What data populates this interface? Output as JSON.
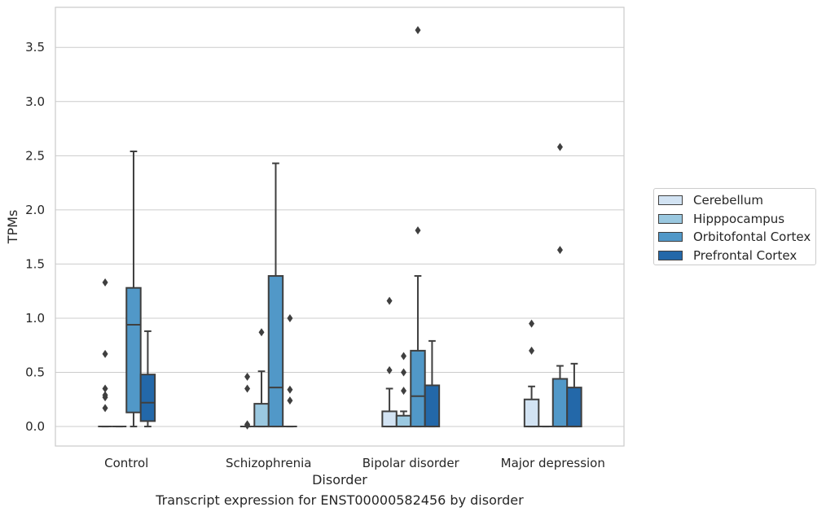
{
  "chart_data": {
    "type": "boxplot",
    "title": "",
    "caption": "Transcript expression for ENST00000582456 by disorder",
    "xlabel": "Disorder",
    "ylabel": "TPMs",
    "ylim": [
      -0.18,
      3.87
    ],
    "yticks": [
      "0.0",
      "0.5",
      "1.0",
      "1.5",
      "2.0",
      "2.5",
      "3.0",
      "3.5"
    ],
    "categories": [
      "Control",
      "Schizophrenia",
      "Bipolar disorder",
      "Major depression"
    ],
    "grid": "horizontal",
    "legend_position": "right",
    "series": [
      {
        "name": "Cerebellum",
        "color": "#d2e3f3",
        "boxes": [
          {
            "q1": 0,
            "median": 0,
            "q3": 0,
            "whislo": 0,
            "whishi": 0,
            "fliers": [
              0.17,
              0.27,
              0.29,
              0.35,
              0.67,
              1.33
            ]
          },
          {
            "q1": 0,
            "median": 0,
            "q3": 0,
            "whislo": 0,
            "whishi": 0,
            "fliers": [
              0.01,
              0.02,
              0.35,
              0.46
            ]
          },
          {
            "q1": 0,
            "median": 0,
            "q3": 0.14,
            "whislo": 0,
            "whishi": 0.35,
            "fliers": [
              0.52,
              1.16
            ]
          },
          {
            "q1": 0,
            "median": 0,
            "q3": 0.25,
            "whislo": 0,
            "whishi": 0.37,
            "fliers": [
              0.7,
              0.95
            ]
          }
        ]
      },
      {
        "name": "Hipppocampus",
        "color": "#9ac8e0",
        "boxes": [
          {
            "q1": 0,
            "median": 0,
            "q3": 0,
            "whislo": 0,
            "whishi": 0,
            "fliers": []
          },
          {
            "q1": 0,
            "median": 0,
            "q3": 0.21,
            "whislo": 0,
            "whishi": 0.51,
            "fliers": [
              0.87
            ]
          },
          {
            "q1": 0,
            "median": 0,
            "q3": 0.1,
            "whislo": 0,
            "whishi": 0.14,
            "fliers": [
              0.33,
              0.5,
              0.65
            ]
          },
          {
            "q1": 0,
            "median": 0,
            "q3": 0,
            "whislo": 0,
            "whishi": 0,
            "fliers": []
          }
        ]
      },
      {
        "name": "Orbitofontal Cortex",
        "color": "#5198c8",
        "boxes": [
          {
            "q1": 0.13,
            "median": 0.94,
            "q3": 1.28,
            "whislo": 0,
            "whishi": 2.54,
            "fliers": []
          },
          {
            "q1": 0,
            "median": 0.36,
            "q3": 1.39,
            "whislo": 0,
            "whishi": 2.43,
            "fliers": []
          },
          {
            "q1": 0,
            "median": 0.28,
            "q3": 0.7,
            "whislo": 0,
            "whishi": 1.39,
            "fliers": [
              1.81,
              3.66
            ]
          },
          {
            "q1": 0,
            "median": 0,
            "q3": 0.44,
            "whislo": 0,
            "whishi": 0.56,
            "fliers": [
              1.63,
              2.58
            ]
          }
        ]
      },
      {
        "name": "Prefrontal Cortex",
        "color": "#2368a9",
        "boxes": [
          {
            "q1": 0.05,
            "median": 0.22,
            "q3": 0.48,
            "whislo": 0,
            "whishi": 0.88,
            "fliers": []
          },
          {
            "q1": 0,
            "median": 0,
            "q3": 0,
            "whislo": 0,
            "whishi": 0,
            "fliers": [
              0.24,
              0.34,
              1.0
            ]
          },
          {
            "q1": 0,
            "median": 0,
            "q3": 0.38,
            "whislo": 0,
            "whishi": 0.79,
            "fliers": []
          },
          {
            "q1": 0,
            "median": 0,
            "q3": 0.36,
            "whislo": 0,
            "whishi": 0.58,
            "fliers": []
          }
        ]
      }
    ]
  }
}
